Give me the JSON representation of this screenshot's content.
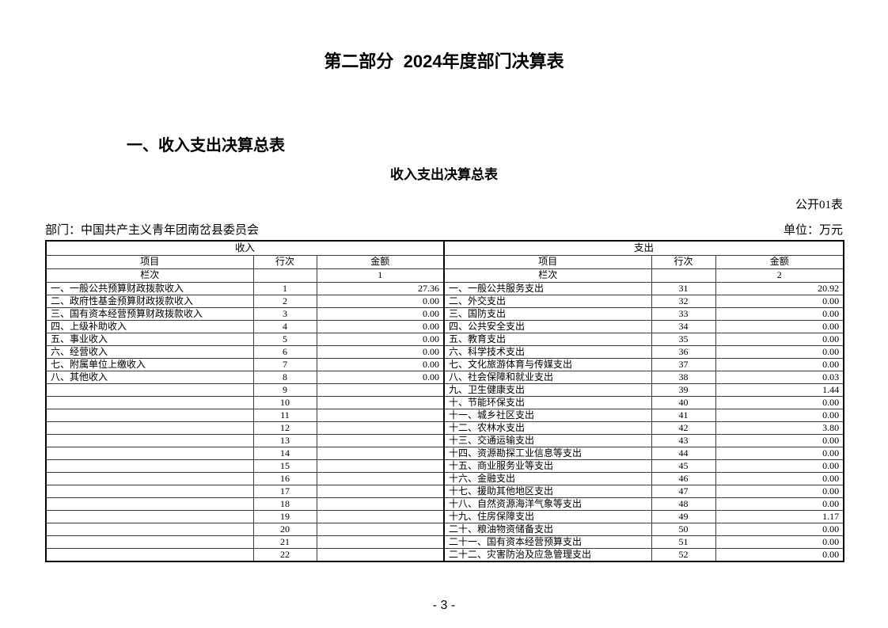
{
  "page": {
    "main_title": "第二部分  2024年度部门决算表",
    "section_heading": "一、收入支出决算总表",
    "table_title": "收入支出决算总表",
    "table_code": "公开01表",
    "department": "部门：中国共产主义青年团南岔县委员会",
    "unit": "单位：万元",
    "page_number": "- 3 -"
  },
  "table": {
    "headers": {
      "income": "收入",
      "expense": "支出",
      "item": "项目",
      "row_no": "行次",
      "amount": "金额",
      "column_index": "栏次",
      "income_index": "1",
      "expense_index": "2"
    },
    "rows": [
      {
        "in_item": "一、一般公共预算财政拨款收入",
        "in_no": "1",
        "in_amt": "27.36",
        "ex_item": "一、一般公共服务支出",
        "ex_no": "31",
        "ex_amt": "20.92"
      },
      {
        "in_item": "二、政府性基金预算财政拨款收入",
        "in_no": "2",
        "in_amt": "0.00",
        "ex_item": "二、外交支出",
        "ex_no": "32",
        "ex_amt": "0.00"
      },
      {
        "in_item": "三、国有资本经营预算财政拨款收入",
        "in_no": "3",
        "in_amt": "0.00",
        "ex_item": "三、国防支出",
        "ex_no": "33",
        "ex_amt": "0.00"
      },
      {
        "in_item": "四、上级补助收入",
        "in_no": "4",
        "in_amt": "0.00",
        "ex_item": "四、公共安全支出",
        "ex_no": "34",
        "ex_amt": "0.00"
      },
      {
        "in_item": "五、事业收入",
        "in_no": "5",
        "in_amt": "0.00",
        "ex_item": "五、教育支出",
        "ex_no": "35",
        "ex_amt": "0.00"
      },
      {
        "in_item": "六、经营收入",
        "in_no": "6",
        "in_amt": "0.00",
        "ex_item": "六、科学技术支出",
        "ex_no": "36",
        "ex_amt": "0.00"
      },
      {
        "in_item": "七、附属单位上缴收入",
        "in_no": "7",
        "in_amt": "0.00",
        "ex_item": "七、文化旅游体育与传媒支出",
        "ex_no": "37",
        "ex_amt": "0.00"
      },
      {
        "in_item": "八、其他收入",
        "in_no": "8",
        "in_amt": "0.00",
        "ex_item": "八、社会保障和就业支出",
        "ex_no": "38",
        "ex_amt": "0.03"
      },
      {
        "in_item": "",
        "in_no": "9",
        "in_amt": "",
        "ex_item": "九、卫生健康支出",
        "ex_no": "39",
        "ex_amt": "1.44"
      },
      {
        "in_item": "",
        "in_no": "10",
        "in_amt": "",
        "ex_item": "十、节能环保支出",
        "ex_no": "40",
        "ex_amt": "0.00"
      },
      {
        "in_item": "",
        "in_no": "11",
        "in_amt": "",
        "ex_item": "十一、城乡社区支出",
        "ex_no": "41",
        "ex_amt": "0.00"
      },
      {
        "in_item": "",
        "in_no": "12",
        "in_amt": "",
        "ex_item": "十二、农林水支出",
        "ex_no": "42",
        "ex_amt": "3.80"
      },
      {
        "in_item": "",
        "in_no": "13",
        "in_amt": "",
        "ex_item": "十三、交通运输支出",
        "ex_no": "43",
        "ex_amt": "0.00"
      },
      {
        "in_item": "",
        "in_no": "14",
        "in_amt": "",
        "ex_item": "十四、资源勘探工业信息等支出",
        "ex_no": "44",
        "ex_amt": "0.00"
      },
      {
        "in_item": "",
        "in_no": "15",
        "in_amt": "",
        "ex_item": "十五、商业服务业等支出",
        "ex_no": "45",
        "ex_amt": "0.00"
      },
      {
        "in_item": "",
        "in_no": "16",
        "in_amt": "",
        "ex_item": "十六、金融支出",
        "ex_no": "46",
        "ex_amt": "0.00"
      },
      {
        "in_item": "",
        "in_no": "17",
        "in_amt": "",
        "ex_item": "十七、援助其他地区支出",
        "ex_no": "47",
        "ex_amt": "0.00"
      },
      {
        "in_item": "",
        "in_no": "18",
        "in_amt": "",
        "ex_item": "十八、自然资源海洋气象等支出",
        "ex_no": "48",
        "ex_amt": "0.00"
      },
      {
        "in_item": "",
        "in_no": "19",
        "in_amt": "",
        "ex_item": "十九、住房保障支出",
        "ex_no": "49",
        "ex_amt": "1.17"
      },
      {
        "in_item": "",
        "in_no": "20",
        "in_amt": "",
        "ex_item": "二十、粮油物资储备支出",
        "ex_no": "50",
        "ex_amt": "0.00"
      },
      {
        "in_item": "",
        "in_no": "21",
        "in_amt": "",
        "ex_item": "二十一、国有资本经营预算支出",
        "ex_no": "51",
        "ex_amt": "0.00"
      },
      {
        "in_item": "",
        "in_no": "22",
        "in_amt": "",
        "ex_item": "二十二、灾害防治及应急管理支出",
        "ex_no": "52",
        "ex_amt": "0.00"
      }
    ]
  }
}
